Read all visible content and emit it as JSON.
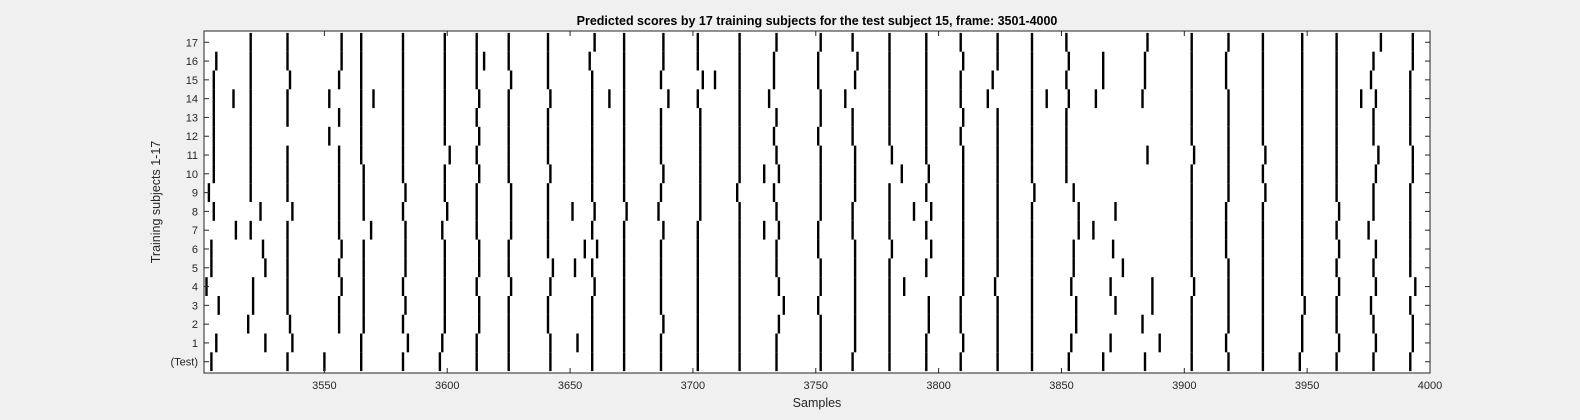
{
  "chart_data": {
    "type": "raster",
    "title": "Predicted scores by 17 training subjects for the test subject 15, frame: 3501-4000",
    "xlabel": "Samples",
    "ylabel": "Training subjects 1-17",
    "xlim": [
      3501,
      4000
    ],
    "xticks": [
      3550,
      3600,
      3650,
      3700,
      3750,
      3800,
      3850,
      3900,
      3950,
      4000
    ],
    "yticklabels": [
      "(Test)",
      "1",
      "2",
      "3",
      "4",
      "5",
      "6",
      "7",
      "8",
      "9",
      "10",
      "11",
      "12",
      "13",
      "14",
      "15",
      "16",
      "17"
    ],
    "grid": false,
    "colors": {
      "background": "#ffffff",
      "spike": "#000000",
      "figure": "#f0f0f0"
    },
    "rows": [
      {
        "label": "(Test)",
        "events": [
          3504,
          3535,
          3550,
          3565,
          3582,
          3597,
          3612,
          3625,
          3642,
          3659,
          3672,
          3687,
          3702,
          3719,
          3734,
          3752,
          3765,
          3780,
          3795,
          3809,
          3824,
          3838,
          3853,
          3867,
          3884,
          3903,
          3918,
          3932,
          3947,
          3962,
          3977,
          3992
        ]
      },
      {
        "label": "1",
        "events": [
          3506,
          3526,
          3537,
          3565,
          3584,
          3598,
          3612,
          3625,
          3642,
          3653,
          3659,
          3672,
          3687,
          3702,
          3719,
          3734,
          3752,
          3766,
          3780,
          3795,
          3810,
          3824,
          3838,
          3854,
          3870,
          3890,
          3903,
          3917,
          3932,
          3948,
          3963,
          3978,
          3993
        ]
      },
      {
        "label": "2",
        "events": [
          3519,
          3536,
          3556,
          3566,
          3582,
          3599,
          3613,
          3625,
          3641,
          3659,
          3672,
          3688,
          3702,
          3719,
          3735,
          3752,
          3766,
          3780,
          3796,
          3809,
          3824,
          3838,
          3856,
          3883,
          3903,
          3918,
          3932,
          3948,
          3962,
          3977,
          3993
        ]
      },
      {
        "label": "3",
        "events": [
          3507,
          3521,
          3535,
          3556,
          3566,
          3583,
          3599,
          3613,
          3625,
          3641,
          3659,
          3672,
          3687,
          3702,
          3719,
          3737,
          3751,
          3766,
          3780,
          3796,
          3809,
          3824,
          3838,
          3856,
          3872,
          3887,
          3903,
          3918,
          3932,
          3949,
          3962,
          3976,
          3992
        ]
      },
      {
        "label": "4",
        "events": [
          3502,
          3521,
          3535,
          3557,
          3566,
          3582,
          3599,
          3612,
          3626,
          3642,
          3660,
          3672,
          3687,
          3702,
          3719,
          3735,
          3752,
          3766,
          3780,
          3786,
          3810,
          3823,
          3838,
          3854,
          3870,
          3887,
          3904,
          3918,
          3932,
          3948,
          3963,
          3978,
          3994
        ]
      },
      {
        "label": "5",
        "events": [
          3504,
          3526,
          3535,
          3556,
          3566,
          3583,
          3599,
          3613,
          3625,
          3643,
          3652,
          3659,
          3672,
          3687,
          3702,
          3719,
          3734,
          3752,
          3766,
          3780,
          3795,
          3810,
          3824,
          3838,
          3855,
          3875,
          3903,
          3918,
          3932,
          3948,
          3962,
          3977,
          3992
        ]
      },
      {
        "label": "6",
        "events": [
          3504,
          3525,
          3535,
          3557,
          3566,
          3583,
          3599,
          3613,
          3625,
          3641,
          3656,
          3661,
          3672,
          3687,
          3702,
          3719,
          3734,
          3751,
          3766,
          3781,
          3797,
          3810,
          3824,
          3838,
          3855,
          3871,
          3903,
          3917,
          3932,
          3948,
          3963,
          3978,
          3992
        ]
      },
      {
        "label": "7",
        "events": [
          3514,
          3520,
          3535,
          3556,
          3569,
          3583,
          3598,
          3612,
          3626,
          3641,
          3659,
          3672,
          3688,
          3702,
          3719,
          3729,
          3735,
          3751,
          3765,
          3780,
          3795,
          3810,
          3824,
          3838,
          3857,
          3863,
          3903,
          3917,
          3932,
          3948,
          3962,
          3975,
          3992
        ]
      },
      {
        "label": "8",
        "events": [
          3505,
          3524,
          3537,
          3556,
          3566,
          3582,
          3600,
          3612,
          3626,
          3641,
          3651,
          3660,
          3673,
          3686,
          3703,
          3719,
          3734,
          3752,
          3765,
          3780,
          3790,
          3797,
          3810,
          3824,
          3838,
          3857,
          3872,
          3903,
          3917,
          3932,
          3948,
          3963,
          3977,
          3992
        ]
      },
      {
        "label": "9",
        "events": [
          3503,
          3520,
          3535,
          3556,
          3566,
          3583,
          3599,
          3612,
          3626,
          3641,
          3659,
          3672,
          3687,
          3703,
          3718,
          3733,
          3752,
          3766,
          3780,
          3795,
          3810,
          3824,
          3839,
          3855,
          3903,
          3918,
          3933,
          3948,
          3962,
          3977,
          3992
        ]
      },
      {
        "label": "10",
        "events": [
          3505,
          3520,
          3535,
          3556,
          3566,
          3582,
          3599,
          3613,
          3625,
          3642,
          3659,
          3672,
          3688,
          3703,
          3719,
          3729,
          3735,
          3752,
          3766,
          3785,
          3796,
          3810,
          3824,
          3838,
          3852,
          3903,
          3918,
          3932,
          3948,
          3962,
          3978,
          3993
        ]
      },
      {
        "label": "11",
        "events": [
          3505,
          3520,
          3535,
          3556,
          3565,
          3582,
          3601,
          3612,
          3625,
          3641,
          3659,
          3672,
          3687,
          3703,
          3719,
          3734,
          3752,
          3766,
          3781,
          3795,
          3810,
          3824,
          3838,
          3852,
          3885,
          3904,
          3918,
          3933,
          3948,
          3962,
          3979,
          3993
        ]
      },
      {
        "label": "12",
        "events": [
          3505,
          3520,
          3552,
          3565,
          3582,
          3599,
          3613,
          3625,
          3641,
          3659,
          3672,
          3687,
          3703,
          3719,
          3733,
          3751,
          3765,
          3780,
          3795,
          3809,
          3824,
          3838,
          3852,
          3903,
          3918,
          3932,
          3948,
          3962,
          3977,
          3992
        ]
      },
      {
        "label": "13",
        "events": [
          3505,
          3520,
          3535,
          3556,
          3565,
          3582,
          3599,
          3612,
          3625,
          3641,
          3659,
          3672,
          3687,
          3703,
          3719,
          3734,
          3752,
          3765,
          3780,
          3795,
          3810,
          3824,
          3838,
          3852,
          3903,
          3918,
          3932,
          3948,
          3962,
          3977,
          3992
        ]
      },
      {
        "label": "14",
        "events": [
          3505,
          3513,
          3520,
          3535,
          3552,
          3565,
          3570,
          3582,
          3599,
          3613,
          3625,
          3642,
          3659,
          3666,
          3672,
          3690,
          3702,
          3719,
          3731,
          3752,
          3762,
          3780,
          3795,
          3809,
          3820,
          3838,
          3844,
          3853,
          3864,
          3883,
          3903,
          3918,
          3932,
          3948,
          3962,
          3972,
          3978,
          3992
        ]
      },
      {
        "label": "15",
        "events": [
          3505,
          3520,
          3536,
          3556,
          3565,
          3582,
          3599,
          3612,
          3626,
          3641,
          3659,
          3672,
          3687,
          3704,
          3709,
          3719,
          3733,
          3751,
          3766,
          3780,
          3795,
          3809,
          3822,
          3838,
          3852,
          3867,
          3884,
          3903,
          3917,
          3932,
          3948,
          3962,
          3976,
          3992
        ]
      },
      {
        "label": "16",
        "events": [
          3506,
          3520,
          3535,
          3557,
          3565,
          3582,
          3599,
          3612,
          3615,
          3625,
          3641,
          3658,
          3672,
          3688,
          3702,
          3719,
          3733,
          3751,
          3767,
          3780,
          3795,
          3810,
          3824,
          3838,
          3853,
          3867,
          3884,
          3903,
          3917,
          3932,
          3948,
          3962,
          3977,
          3993
        ]
      },
      {
        "label": "17",
        "events": [
          3520,
          3535,
          3557,
          3565,
          3582,
          3599,
          3612,
          3625,
          3641,
          3660,
          3672,
          3688,
          3702,
          3719,
          3734,
          3752,
          3765,
          3780,
          3795,
          3809,
          3824,
          3838,
          3852,
          3885,
          3903,
          3918,
          3932,
          3948,
          3962,
          3980,
          3993
        ]
      }
    ]
  }
}
